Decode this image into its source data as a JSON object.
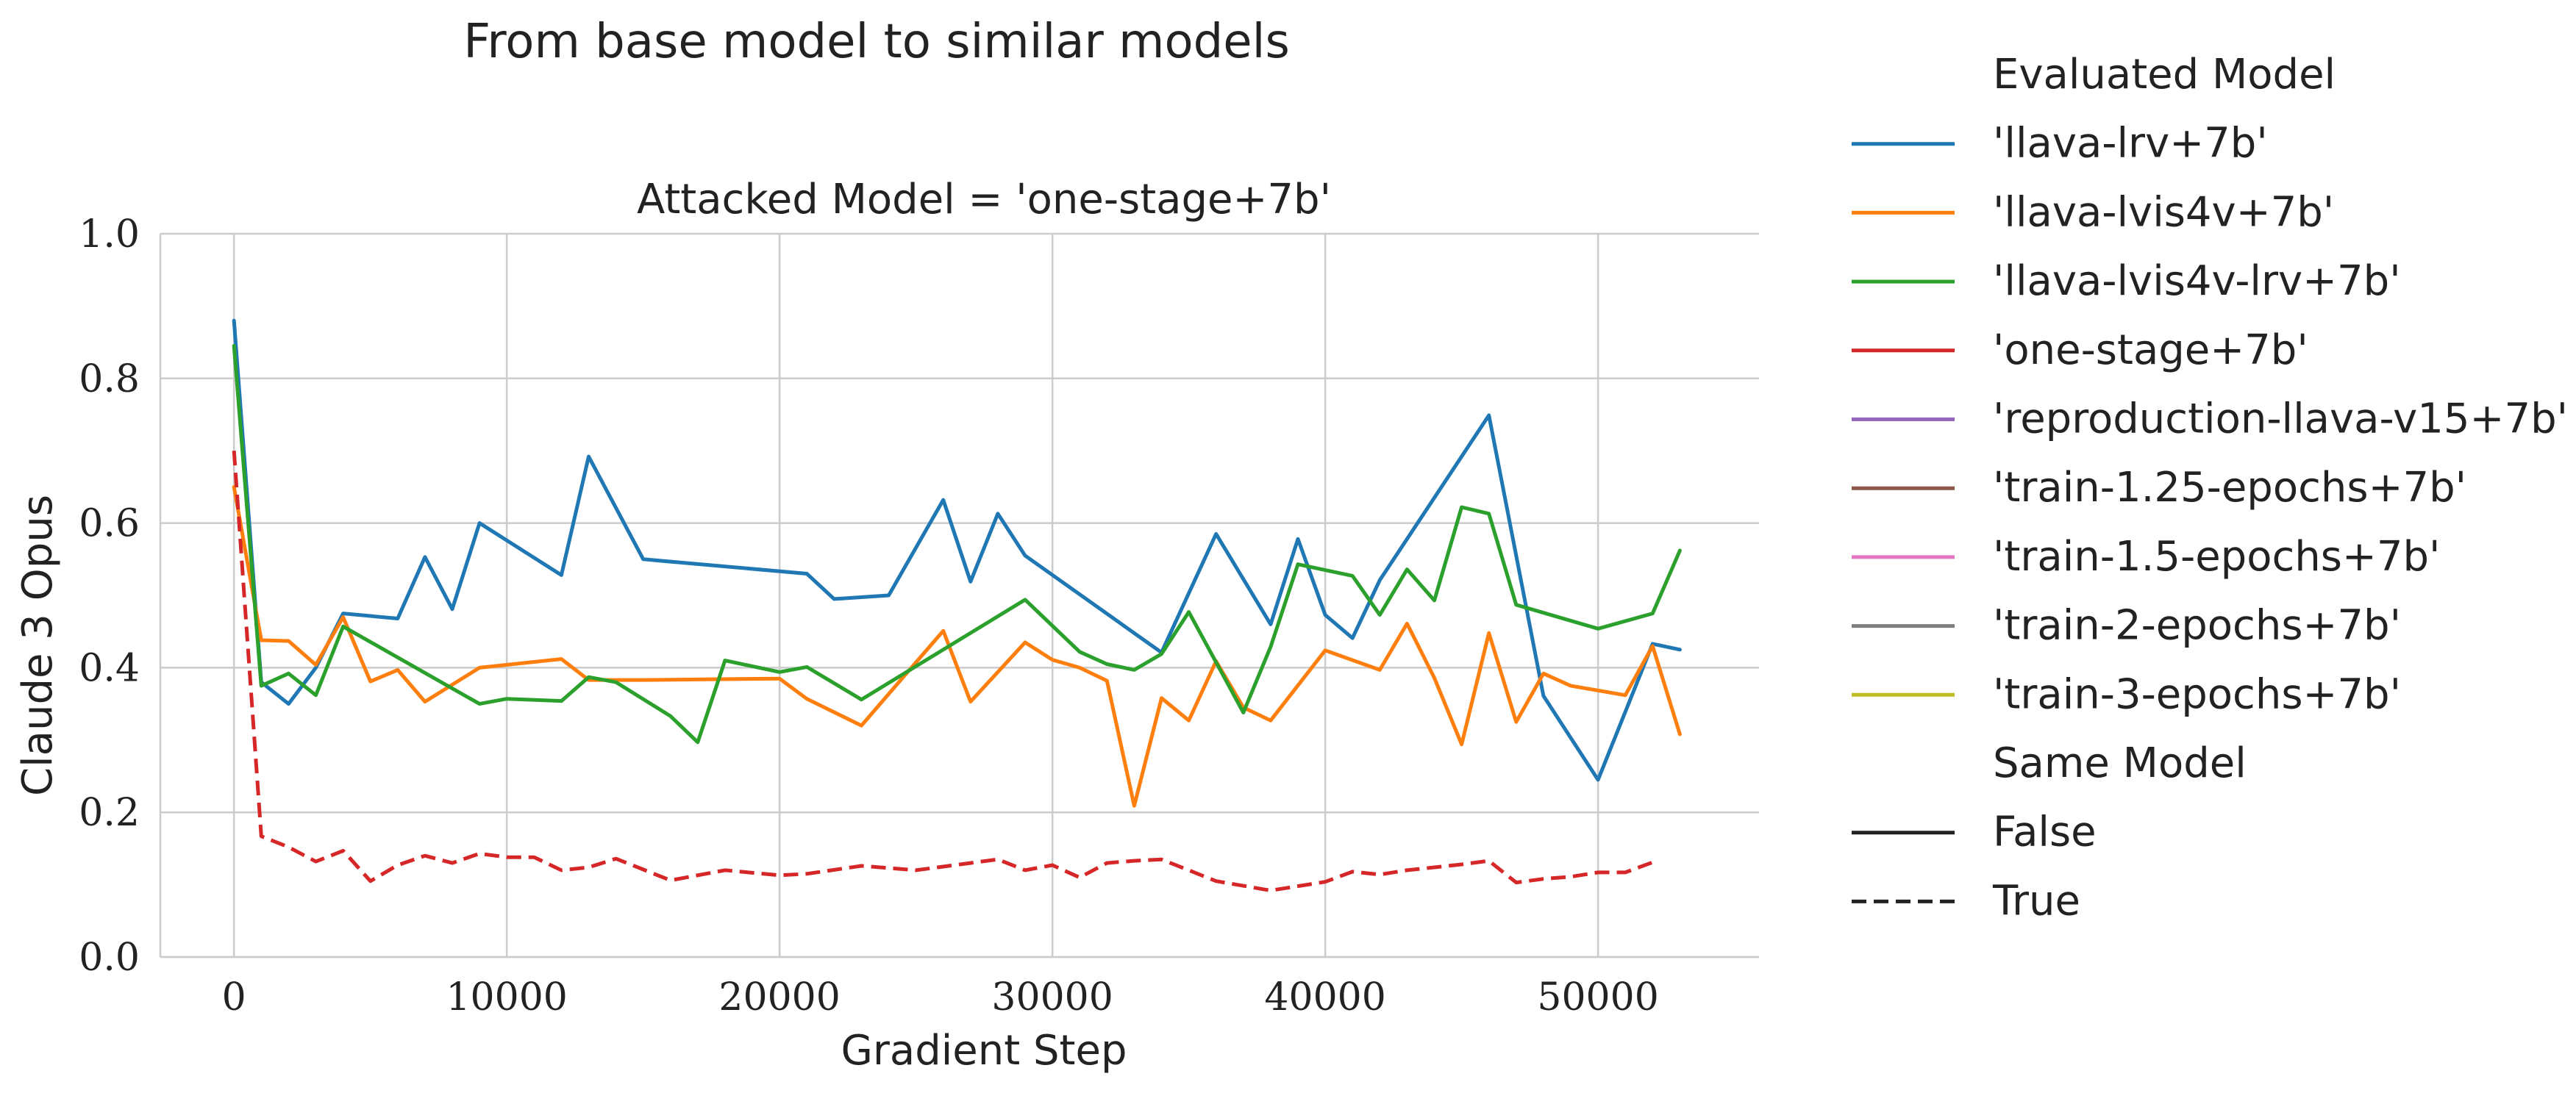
{
  "chart_data": {
    "type": "line",
    "title": "From base model to similar models",
    "subtitle": "Attacked Model = 'one-stage+7b'",
    "xlabel": "Gradient Step",
    "ylabel": "Claude 3 Opus",
    "xlim": [
      -2700,
      55900
    ],
    "ylim": [
      0.0,
      1.0
    ],
    "xticks": [
      0,
      10000,
      20000,
      30000,
      40000,
      50000
    ],
    "yticks": [
      0.0,
      0.2,
      0.4,
      0.6,
      0.8,
      1.0
    ],
    "grid": true,
    "legend_position": "outside-right",
    "legend": {
      "hue_title": "Evaluated Model",
      "hue_entries": [
        {
          "label": "'llava-lrv+7b'",
          "color": "#1f77b4"
        },
        {
          "label": "'llava-lvis4v+7b'",
          "color": "#ff7f0e"
        },
        {
          "label": "'llava-lvis4v-lrv+7b'",
          "color": "#2ca02c"
        },
        {
          "label": "'one-stage+7b'",
          "color": "#d62728"
        },
        {
          "label": "'reproduction-llava-v15+7b'",
          "color": "#9467bd"
        },
        {
          "label": "'train-1.25-epochs+7b'",
          "color": "#8c564b"
        },
        {
          "label": "'train-1.5-epochs+7b'",
          "color": "#e377c2"
        },
        {
          "label": "'train-2-epochs+7b'",
          "color": "#7f7f7f"
        },
        {
          "label": "'train-3-epochs+7b'",
          "color": "#bcbd22"
        }
      ],
      "style_title": "Same Model",
      "style_entries": [
        {
          "label": "False",
          "dash": "solid"
        },
        {
          "label": "True",
          "dash": "dashed"
        }
      ]
    },
    "series": [
      {
        "name": "'llava-lrv+7b'",
        "color": "#1f77b4",
        "dash": "solid",
        "x": [
          0,
          1000,
          2000,
          3000,
          4000,
          6000,
          7000,
          8000,
          9000,
          12000,
          13000,
          15000,
          21000,
          22000,
          24000,
          26000,
          27000,
          28000,
          29000,
          34000,
          36000,
          38000,
          39000,
          40000,
          41000,
          42000,
          46000,
          48000,
          50000,
          52000,
          53000
        ],
        "y": [
          0.88,
          0.38,
          0.35,
          0.4,
          0.475,
          0.468,
          0.553,
          0.481,
          0.6,
          0.528,
          0.692,
          0.55,
          0.53,
          0.495,
          0.5,
          0.632,
          0.519,
          0.613,
          0.555,
          0.421,
          0.585,
          0.46,
          0.578,
          0.473,
          0.441,
          0.521,
          0.749,
          0.361,
          0.245,
          0.433,
          0.425
        ]
      },
      {
        "name": "'llava-lvis4v+7b'",
        "color": "#ff7f0e",
        "dash": "solid",
        "x": [
          0,
          1000,
          2000,
          3000,
          4000,
          5000,
          6000,
          7000,
          9000,
          12000,
          13000,
          15000,
          20000,
          21000,
          23000,
          26000,
          27000,
          29000,
          30000,
          31000,
          32000,
          33000,
          34000,
          35000,
          36000,
          37000,
          38000,
          40000,
          42000,
          43000,
          44000,
          45000,
          46000,
          47000,
          48000,
          49000,
          51000,
          52000,
          53000
        ],
        "y": [
          0.65,
          0.438,
          0.437,
          0.404,
          0.47,
          0.381,
          0.397,
          0.353,
          0.4,
          0.412,
          0.383,
          0.383,
          0.385,
          0.357,
          0.32,
          0.451,
          0.353,
          0.435,
          0.411,
          0.4,
          0.382,
          0.209,
          0.358,
          0.327,
          0.409,
          0.345,
          0.327,
          0.424,
          0.397,
          0.461,
          0.386,
          0.294,
          0.448,
          0.325,
          0.392,
          0.375,
          0.362,
          0.43,
          0.308
        ]
      },
      {
        "name": "'llava-lvis4v-lrv+7b'",
        "color": "#2ca02c",
        "dash": "solid",
        "x": [
          0,
          1000,
          2000,
          3000,
          4000,
          9000,
          10000,
          12000,
          13000,
          14000,
          16000,
          17000,
          18000,
          20000,
          21000,
          23000,
          29000,
          31000,
          32000,
          33000,
          34000,
          35000,
          37000,
          38000,
          39000,
          41000,
          42000,
          43000,
          44000,
          45000,
          46000,
          47000,
          50000,
          52000,
          53000
        ],
        "y": [
          0.845,
          0.375,
          0.392,
          0.362,
          0.457,
          0.35,
          0.357,
          0.354,
          0.387,
          0.38,
          0.333,
          0.297,
          0.41,
          0.394,
          0.401,
          0.356,
          0.494,
          0.422,
          0.405,
          0.397,
          0.419,
          0.477,
          0.338,
          0.429,
          0.543,
          0.527,
          0.473,
          0.536,
          0.493,
          0.622,
          0.613,
          0.487,
          0.454,
          0.475,
          0.562
        ]
      },
      {
        "name": "'one-stage+7b'",
        "color": "#d62728",
        "dash": "dashed",
        "x": [
          0,
          1000,
          2000,
          3000,
          4000,
          5000,
          6000,
          7000,
          8000,
          9000,
          10000,
          11000,
          12000,
          13000,
          14000,
          16000,
          18000,
          20000,
          21000,
          23000,
          25000,
          26000,
          27000,
          28000,
          29000,
          30000,
          31000,
          32000,
          33000,
          34000,
          35000,
          36000,
          38000,
          40000,
          41000,
          42000,
          43000,
          44000,
          45000,
          46000,
          47000,
          48000,
          49000,
          50000,
          51000,
          52000
        ],
        "y": [
          0.7,
          0.167,
          0.152,
          0.132,
          0.147,
          0.105,
          0.127,
          0.14,
          0.13,
          0.143,
          0.138,
          0.138,
          0.12,
          0.124,
          0.136,
          0.106,
          0.12,
          0.113,
          0.115,
          0.126,
          0.12,
          0.125,
          0.13,
          0.135,
          0.12,
          0.127,
          0.11,
          0.13,
          0.133,
          0.135,
          0.12,
          0.105,
          0.092,
          0.104,
          0.118,
          0.114,
          0.12,
          0.124,
          0.128,
          0.133,
          0.103,
          0.108,
          0.111,
          0.117,
          0.117,
          0.131
        ]
      }
    ]
  }
}
